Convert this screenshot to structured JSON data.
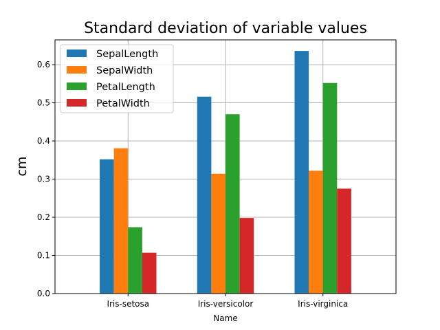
{
  "chart_data": {
    "type": "bar",
    "title": "Standard deviation of variable values",
    "xlabel": "Name",
    "ylabel": "cm",
    "categories": [
      "Iris-setosa",
      "Iris-versicolor",
      "Iris-virginica"
    ],
    "series": [
      {
        "name": "SepalLength",
        "color": "#1f77b4",
        "values": [
          0.352,
          0.516,
          0.636
        ]
      },
      {
        "name": "SepalWidth",
        "color": "#ff7f0e",
        "values": [
          0.381,
          0.314,
          0.322
        ]
      },
      {
        "name": "PetalLength",
        "color": "#2ca02c",
        "values": [
          0.174,
          0.47,
          0.552
        ]
      },
      {
        "name": "PetalWidth",
        "color": "#d62728",
        "values": [
          0.107,
          0.198,
          0.275
        ]
      }
    ],
    "ylim": [
      0,
      0.665
    ],
    "yticks": [
      "0.0",
      "0.1",
      "0.2",
      "0.3",
      "0.4",
      "0.5",
      "0.6"
    ],
    "grid": true,
    "legend_position": "top-left"
  }
}
